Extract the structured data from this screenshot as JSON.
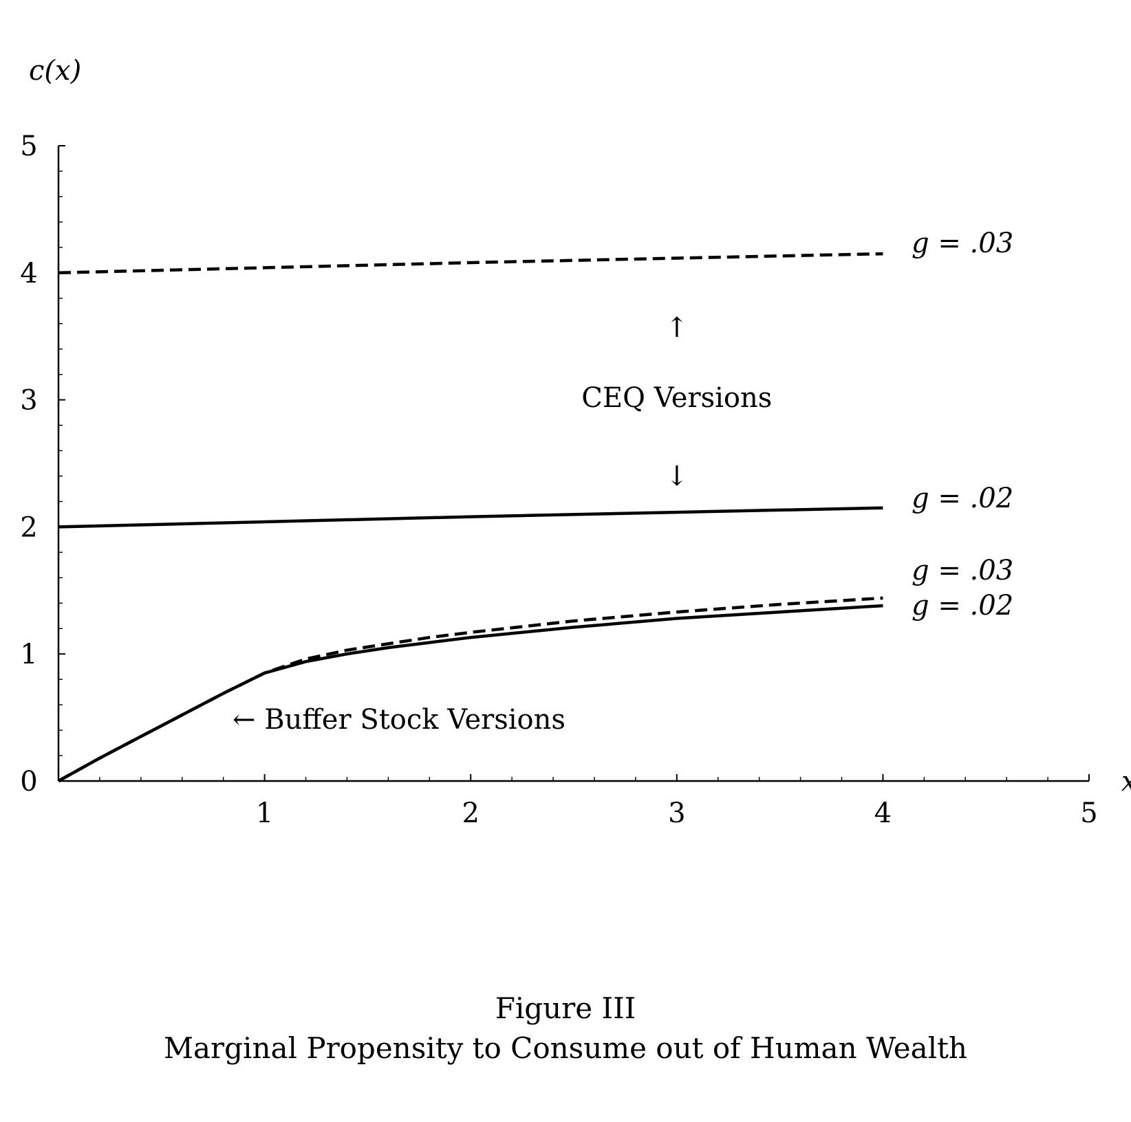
{
  "figure": {
    "number": "Figure III",
    "title": "Marginal Propensity to Consume out of Human Wealth"
  },
  "chart_data": {
    "type": "line",
    "xlabel": "x",
    "ylabel": "c(x)",
    "xlim": [
      0,
      5
    ],
    "ylim": [
      0,
      5
    ],
    "xticks": [
      "1",
      "2",
      "3",
      "4",
      "5"
    ],
    "yticks": [
      "0",
      "1",
      "2",
      "3",
      "4",
      "5"
    ],
    "grid": false,
    "series": [
      {
        "group": "CEQ Versions",
        "label": "g = .03",
        "style": "dashed",
        "x": [
          0,
          1,
          2,
          3,
          4
        ],
        "y": [
          4.0,
          4.04,
          4.08,
          4.115,
          4.15
        ]
      },
      {
        "group": "CEQ Versions",
        "label": "g = .02",
        "style": "solid",
        "x": [
          0,
          1,
          2,
          3,
          4
        ],
        "y": [
          2.0,
          2.04,
          2.08,
          2.115,
          2.15
        ]
      },
      {
        "group": "Buffer Stock Versions",
        "label": "g = .03",
        "style": "dashed",
        "x": [
          0,
          0.2,
          0.4,
          0.6,
          0.8,
          1.0,
          1.2,
          1.4,
          1.6,
          1.8,
          2.0,
          2.5,
          3.0,
          3.5,
          4.0
        ],
        "y": [
          0,
          0.18,
          0.35,
          0.52,
          0.69,
          0.85,
          0.96,
          1.03,
          1.08,
          1.13,
          1.17,
          1.26,
          1.33,
          1.39,
          1.44
        ]
      },
      {
        "group": "Buffer Stock Versions",
        "label": "g = .02",
        "style": "solid",
        "x": [
          0,
          0.2,
          0.4,
          0.6,
          0.8,
          1.0,
          1.2,
          1.4,
          1.6,
          1.8,
          2.0,
          2.5,
          3.0,
          3.5,
          4.0
        ],
        "y": [
          0,
          0.18,
          0.35,
          0.52,
          0.69,
          0.85,
          0.94,
          1.0,
          1.05,
          1.09,
          1.13,
          1.21,
          1.28,
          1.33,
          1.38
        ]
      }
    ],
    "annotations": {
      "ceq": "CEQ Versions",
      "ceq_up_arrow": "↑",
      "ceq_down_arrow": "↓",
      "buffer": "← Buffer Stock Versions"
    }
  }
}
